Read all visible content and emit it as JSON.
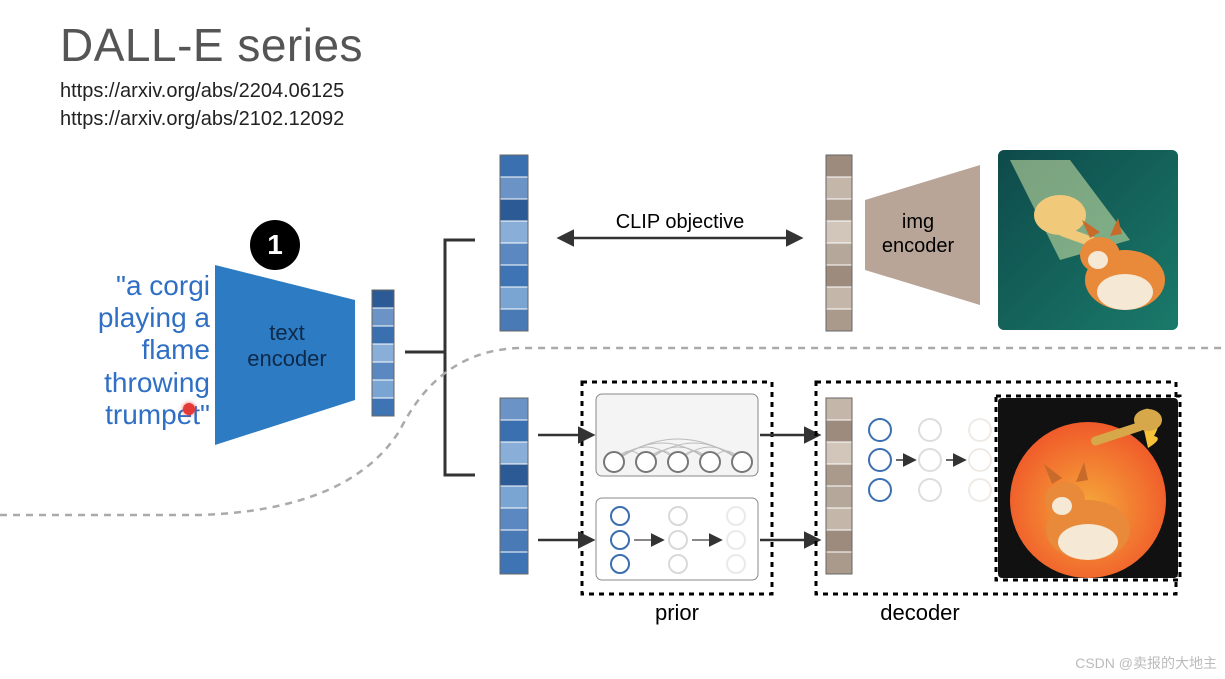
{
  "title": "DALL-E series",
  "links": [
    "https://arxiv.org/abs/2204.06125",
    "https://arxiv.org/abs/2102.12092"
  ],
  "prompt": {
    "lines": [
      "\"a corgi",
      "playing a",
      "flame",
      "throwing",
      "trumpet\""
    ],
    "color": "#2f6fc4"
  },
  "badge": {
    "text": "1",
    "bg": "#000000",
    "fg": "#ffffff"
  },
  "blocks": {
    "text_encoder": {
      "label": "text\nencoder",
      "fill": "#2d7bc3",
      "label_color": "#0e2a4a"
    },
    "img_encoder": {
      "label": "img\nencoder",
      "fill": "#b9a597"
    },
    "prior": {
      "label": "prior"
    },
    "decoder": {
      "label": "decoder"
    }
  },
  "clip_label": "CLIP objective",
  "vectors": {
    "text_vec": {
      "cells": 7,
      "colors": [
        "#2c5a95",
        "#6b93c6",
        "#3a6fb0",
        "#89aed8",
        "#5b88c1",
        "#7aa4d2",
        "#3f74b4"
      ]
    },
    "clip_top": {
      "cells": 8,
      "colors": [
        "#3a6fb0",
        "#6b93c6",
        "#2c5a95",
        "#89aed8",
        "#5b88c1",
        "#3f74b4",
        "#7aa4d2",
        "#4a7ab5"
      ]
    },
    "clip_bot": {
      "cells": 8,
      "colors": [
        "#6b93c6",
        "#3a6fb0",
        "#89aed8",
        "#2c5a95",
        "#7aa4d2",
        "#5b88c1",
        "#4a7ab5",
        "#3f74b4"
      ]
    },
    "img_top": {
      "cells": 8,
      "colors": [
        "#9d8b7d",
        "#c4b6a9",
        "#a99a8c",
        "#d2c6ba",
        "#b5a79a",
        "#9d8b7d",
        "#c4b6a9",
        "#a99a8c"
      ]
    },
    "img_bot": {
      "cells": 8,
      "colors": [
        "#c4b6a9",
        "#9d8b7d",
        "#d2c6ba",
        "#a99a8c",
        "#b5a79a",
        "#c4b6a9",
        "#9d8b7d",
        "#a99a8c"
      ]
    }
  },
  "corgi_top": {
    "bg_from": "#0e4a4a",
    "bg_to": "#1a7a6a",
    "body": "#e88a3a",
    "belly": "#f5e8d5",
    "ear": "#c86a2a",
    "trumpet": "#f0c97a",
    "beam": "#e8f5b0"
  },
  "corgi_bot": {
    "bg": "#111111",
    "sun": "#f05a2a",
    "sun2": "#f5a83a",
    "body": "#e88a3a",
    "belly": "#f5e8d5",
    "ear": "#c86a2a",
    "trumpet": "#d6a84a",
    "flame": "#f5c23a"
  },
  "prior_circles": {
    "stroke": "#777",
    "n": 5
  },
  "decoder_circles": {
    "left_stroke": "#3a6fb0",
    "mid_stroke": "#bdbdbd",
    "right_stroke": "#d4c6b8"
  },
  "watermark": "CSDN @卖报的大地主"
}
